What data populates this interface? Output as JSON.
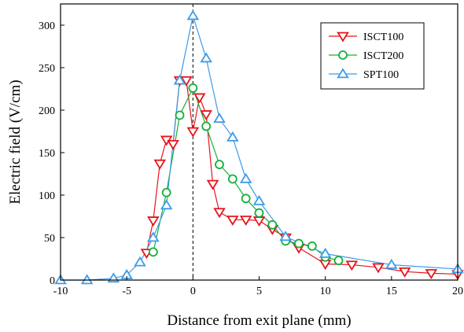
{
  "chart_data": {
    "type": "line",
    "title": "",
    "xlabel": "Distance from exit plane (mm)",
    "ylabel": "Electric field (V/cm)",
    "xlim": [
      -10,
      20
    ],
    "ylim": [
      0,
      325
    ],
    "xticks": [
      -10,
      -5,
      0,
      5,
      10,
      15,
      20
    ],
    "yticks": [
      0,
      50,
      100,
      150,
      200,
      250,
      300
    ],
    "grid": false,
    "legend_position": "top-right",
    "reference_line": {
      "x": 0,
      "style": "dashed"
    },
    "series": [
      {
        "name": "ISCT100",
        "color": "#e8141c",
        "marker": "triangle-down",
        "x": [
          -3.5,
          -3,
          -2.5,
          -2,
          -1.5,
          -1,
          -0.5,
          0,
          0.5,
          1,
          1.5,
          2,
          3,
          4,
          5,
          6,
          7,
          8,
          10,
          12,
          14,
          16,
          18,
          20
        ],
        "y": [
          32,
          70,
          137,
          165,
          160,
          235,
          235,
          175,
          215,
          195,
          113,
          80,
          71,
          71,
          70,
          60,
          50,
          38,
          19,
          18,
          15,
          10,
          8,
          7
        ]
      },
      {
        "name": "ISCT200",
        "color": "#13b03a",
        "marker": "circle",
        "x": [
          -3,
          -2,
          -1,
          0,
          1,
          2,
          3,
          4,
          5,
          6,
          7,
          8,
          9,
          10,
          11
        ],
        "y": [
          33,
          103,
          194,
          226,
          181,
          136,
          119,
          96,
          79,
          65,
          46,
          43,
          40,
          27,
          23
        ]
      },
      {
        "name": "SPT100",
        "color": "#3d9be9",
        "marker": "triangle-up",
        "x": [
          -10,
          -8,
          -6,
          -5,
          -4,
          -3,
          -2,
          -1,
          0,
          1,
          2,
          3,
          4,
          5,
          7,
          10,
          15,
          20
        ],
        "y": [
          0,
          0,
          2,
          6,
          21,
          50,
          88,
          235,
          311,
          261,
          190,
          168,
          119,
          93,
          51,
          31,
          18,
          13
        ]
      }
    ]
  }
}
